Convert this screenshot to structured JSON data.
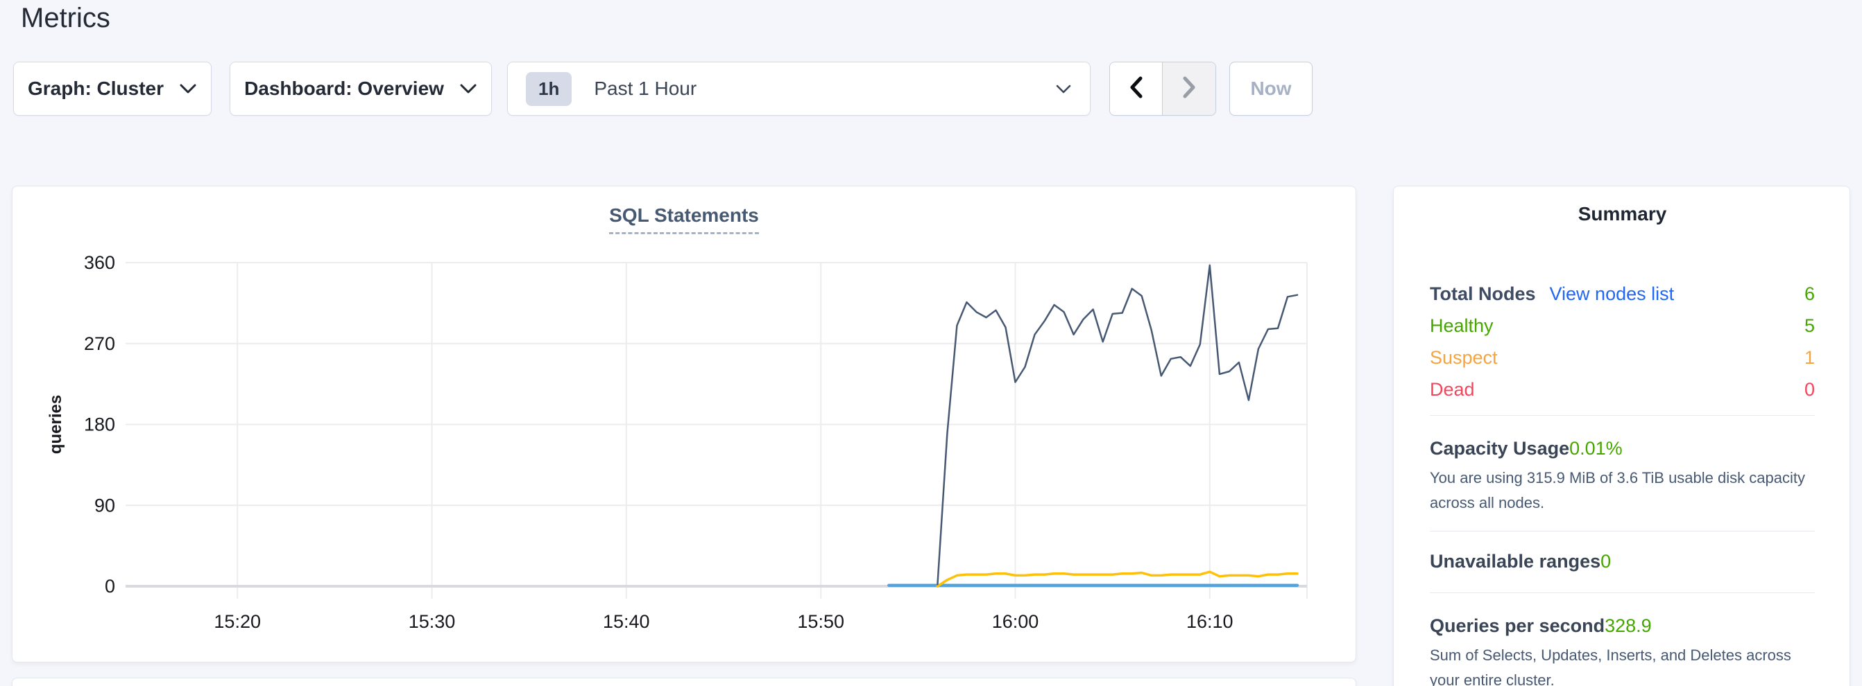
{
  "page": {
    "title": "Metrics"
  },
  "toolbar": {
    "graph_dropdown": "Graph: Cluster",
    "dashboard_dropdown": "Dashboard: Overview",
    "time_window": {
      "badge": "1h",
      "label": "Past 1 Hour"
    },
    "now_button": "Now"
  },
  "summary": {
    "title": "Summary",
    "nodes": {
      "label": "Total Nodes",
      "link": "View nodes list",
      "value": "6",
      "statuses": [
        {
          "label": "Healthy",
          "value": "5",
          "color": "#46a600"
        },
        {
          "label": "Suspect",
          "value": "1",
          "color": "#f8a43c"
        },
        {
          "label": "Dead",
          "value": "0",
          "color": "#f4455c"
        }
      ]
    },
    "capacity": {
      "label": "Capacity Usage",
      "value": "0.01%",
      "description_lines": [
        "You are using 315.9 MiB of 3.6 TiB usable disk capacity",
        "across all nodes."
      ]
    },
    "unavailable_ranges": {
      "label": "Unavailable ranges",
      "value": "0"
    },
    "qps": {
      "label": "Queries per second",
      "value": "328.9",
      "description_lines": [
        "Sum of Selects, Updates, Inserts, and Deletes across",
        "your entire cluster."
      ]
    }
  },
  "chart_data": {
    "type": "line",
    "title": "SQL Statements",
    "xlabel": "",
    "ylabel": "queries",
    "ylim": [
      0,
      360
    ],
    "y_ticks": [
      0,
      90,
      180,
      270,
      360
    ],
    "x_unit": "minutes-of-day (e.g. 956 = 15:56)",
    "x_domain_minutes": [
      914.25,
      975
    ],
    "x_ticks": [
      {
        "t": 920,
        "label": "15:20"
      },
      {
        "t": 930,
        "label": "15:30"
      },
      {
        "t": 940,
        "label": "15:40"
      },
      {
        "t": 950,
        "label": "15:50"
      },
      {
        "t": 960,
        "label": "16:00"
      },
      {
        "t": 970,
        "label": "16:10"
      }
    ],
    "grid": true,
    "legend_position": "none",
    "series": [
      {
        "name": "blue-line",
        "color": "#55a1da",
        "width": 4.5,
        "points": [
          [
            953.5,
            1
          ],
          [
            974.5,
            1
          ]
        ]
      },
      {
        "name": "yellow-line",
        "color": "#ffc107",
        "width": 3.5,
        "points": [
          [
            956,
            0
          ],
          [
            956.5,
            7
          ],
          [
            957,
            12
          ],
          [
            957.5,
            13
          ],
          [
            958,
            13
          ],
          [
            958.5,
            13
          ],
          [
            959,
            14
          ],
          [
            959.5,
            14
          ],
          [
            960,
            12
          ],
          [
            960.5,
            12
          ],
          [
            961,
            13
          ],
          [
            961.5,
            13
          ],
          [
            962,
            14
          ],
          [
            962.5,
            14
          ],
          [
            963,
            13
          ],
          [
            963.5,
            13
          ],
          [
            964,
            13
          ],
          [
            964.5,
            13
          ],
          [
            965,
            13
          ],
          [
            965.5,
            14
          ],
          [
            966,
            14
          ],
          [
            966.5,
            15
          ],
          [
            967,
            12
          ],
          [
            967.5,
            12
          ],
          [
            968,
            13
          ],
          [
            968.5,
            13
          ],
          [
            969,
            13
          ],
          [
            969.5,
            13
          ],
          [
            970,
            16
          ],
          [
            970.5,
            11
          ],
          [
            971,
            12
          ],
          [
            971.5,
            12
          ],
          [
            972,
            12
          ],
          [
            972.5,
            11
          ],
          [
            973,
            13
          ],
          [
            973.5,
            13
          ],
          [
            974,
            14
          ],
          [
            974.5,
            14
          ]
        ]
      },
      {
        "name": "navy-line",
        "color": "#475872",
        "width": 2.5,
        "points": [
          [
            956,
            2
          ],
          [
            956.5,
            170
          ],
          [
            957,
            290
          ],
          [
            957.5,
            316
          ],
          [
            958,
            305
          ],
          [
            958.5,
            299
          ],
          [
            959,
            307
          ],
          [
            959.5,
            288
          ],
          [
            960,
            227
          ],
          [
            960.5,
            244
          ],
          [
            961,
            280
          ],
          [
            961.5,
            295
          ],
          [
            962,
            313
          ],
          [
            962.5,
            305
          ],
          [
            963,
            280
          ],
          [
            963.5,
            297
          ],
          [
            964,
            308
          ],
          [
            964.5,
            272
          ],
          [
            965,
            303
          ],
          [
            965.5,
            304
          ],
          [
            966,
            331
          ],
          [
            966.5,
            323
          ],
          [
            967,
            285
          ],
          [
            967.5,
            234
          ],
          [
            968,
            253
          ],
          [
            968.5,
            255
          ],
          [
            969,
            245
          ],
          [
            969.5,
            269
          ],
          [
            970,
            357
          ],
          [
            970.5,
            236
          ],
          [
            971,
            239
          ],
          [
            971.5,
            249
          ],
          [
            972,
            207
          ],
          [
            972.5,
            264
          ],
          [
            973,
            286
          ],
          [
            973.5,
            287
          ],
          [
            974,
            322
          ],
          [
            974.5,
            324
          ]
        ]
      }
    ]
  }
}
